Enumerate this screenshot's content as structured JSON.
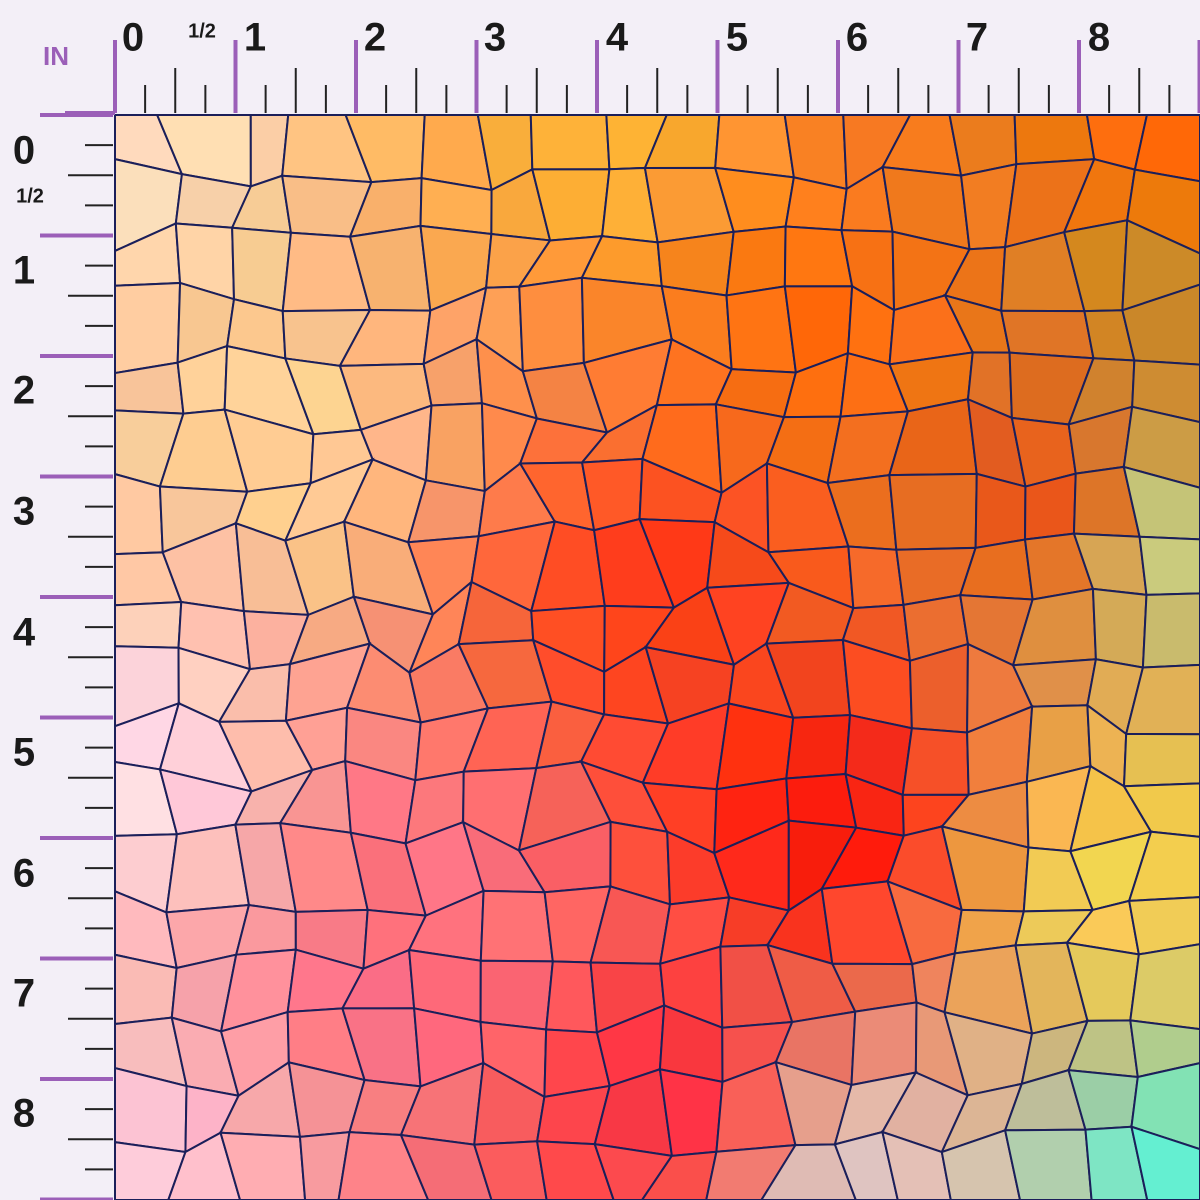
{
  "ruler": {
    "unit": "IN",
    "top_labels": [
      "0",
      "1/2",
      "1",
      "2",
      "3",
      "4",
      "5",
      "6",
      "7",
      "8"
    ],
    "left_labels": [
      "0",
      "1/2",
      "1",
      "2",
      "3",
      "4",
      "5",
      "6",
      "7",
      "8"
    ]
  }
}
